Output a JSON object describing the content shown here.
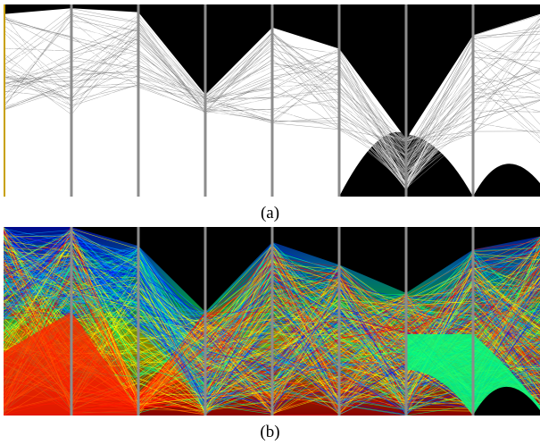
{
  "figure": {
    "captions": [
      "(a)",
      "(b)"
    ]
  },
  "chart_data": [
    {
      "type": "parallel-coordinates",
      "panel": "(a)",
      "axes_count": 8,
      "background_color": "#000000",
      "line_color": "#ffffff",
      "axis_color": "#8c8c8c",
      "grid": false,
      "legend": "none",
      "density_upper_envelope": [
        0.05,
        0.02,
        0.04,
        0.47,
        0.12,
        0.23,
        0.7,
        0.16,
        0.05
      ],
      "density_lower_envelope": [
        0.62,
        0.64,
        0.5,
        0.58,
        0.68,
        0.7,
        1.0,
        0.74,
        0.8
      ]
    },
    {
      "type": "parallel-coordinates",
      "panel": "(b)",
      "axes_count": 8,
      "background_color": "#000000",
      "colormap": [
        "#0010ff",
        "#00a0ff",
        "#00ff80",
        "#ffff00",
        "#ff8000",
        "#ff0000"
      ],
      "axis_color": "#8c8c8c",
      "grid": false,
      "legend": "none",
      "color_bands": [
        "blue",
        "cyan",
        "green",
        "yellow",
        "orange",
        "red"
      ]
    }
  ]
}
